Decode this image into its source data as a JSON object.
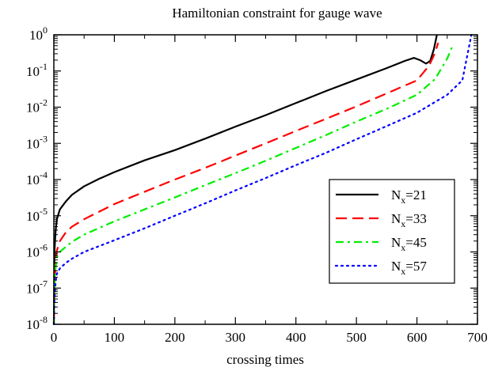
{
  "chart_data": {
    "type": "line",
    "title": "Hamiltonian constraint for gauge wave",
    "xlabel": "crossing times",
    "ylabel": "",
    "xlim": [
      0,
      700
    ],
    "ylim": [
      1e-08,
      1
    ],
    "yscale": "log",
    "grid": false,
    "legend_position": "center-right",
    "x_ticks": [
      {
        "value": 0,
        "label": "0"
      },
      {
        "value": 100,
        "label": "100"
      },
      {
        "value": 200,
        "label": "200"
      },
      {
        "value": 300,
        "label": "300"
      },
      {
        "value": 400,
        "label": "400"
      },
      {
        "value": 500,
        "label": "500"
      },
      {
        "value": 600,
        "label": "600"
      },
      {
        "value": 700,
        "label": "700"
      }
    ],
    "y_ticks": [
      {
        "value": 1e-08,
        "base": "10",
        "exp": "-8"
      },
      {
        "value": 1e-07,
        "base": "10",
        "exp": "-7"
      },
      {
        "value": 1e-06,
        "base": "10",
        "exp": "-6"
      },
      {
        "value": 1e-05,
        "base": "10",
        "exp": "-5"
      },
      {
        "value": 0.0001,
        "base": "10",
        "exp": "-4"
      },
      {
        "value": 0.001,
        "base": "10",
        "exp": "-3"
      },
      {
        "value": 0.01,
        "base": "10",
        "exp": "-2"
      },
      {
        "value": 0.1,
        "base": "10",
        "exp": "-1"
      },
      {
        "value": 1,
        "base": "10",
        "exp": "0"
      }
    ],
    "series": [
      {
        "legend": {
          "main": "N",
          "sub": "x",
          "rest": "=21"
        },
        "color": "#000000",
        "dash": "solid",
        "points": [
          [
            0,
            1e-08
          ],
          [
            1,
            1e-06
          ],
          [
            3,
            4e-06
          ],
          [
            5,
            8e-06
          ],
          [
            10,
            1.5e-05
          ],
          [
            20,
            2.5e-05
          ],
          [
            30,
            3.8e-05
          ],
          [
            50,
            6.5e-05
          ],
          [
            75,
            0.000105
          ],
          [
            100,
            0.00016
          ],
          [
            150,
            0.00034
          ],
          [
            200,
            0.00065
          ],
          [
            250,
            0.00135
          ],
          [
            300,
            0.0029
          ],
          [
            350,
            0.006
          ],
          [
            400,
            0.013
          ],
          [
            450,
            0.028
          ],
          [
            500,
            0.058
          ],
          [
            550,
            0.12
          ],
          [
            580,
            0.19
          ],
          [
            595,
            0.23
          ],
          [
            605,
            0.2
          ],
          [
            615,
            0.16
          ],
          [
            622,
            0.19
          ],
          [
            628,
            0.4
          ],
          [
            633,
            1.0
          ]
        ]
      },
      {
        "legend": {
          "main": "N",
          "sub": "x",
          "rest": "=33"
        },
        "color": "#ff0000",
        "dash": "dashed",
        "points": [
          [
            0,
            1e-08
          ],
          [
            1,
            1e-07
          ],
          [
            3,
            6e-07
          ],
          [
            5,
            1.1e-06
          ],
          [
            10,
            2e-06
          ],
          [
            20,
            3.5e-06
          ],
          [
            30,
            5e-06
          ],
          [
            50,
            8e-06
          ],
          [
            100,
            2.1e-05
          ],
          [
            150,
            4.6e-05
          ],
          [
            200,
            0.0001
          ],
          [
            250,
            0.00021
          ],
          [
            300,
            0.00046
          ],
          [
            350,
            0.001
          ],
          [
            400,
            0.0022
          ],
          [
            450,
            0.0048
          ],
          [
            500,
            0.0105
          ],
          [
            550,
            0.024
          ],
          [
            600,
            0.055
          ],
          [
            620,
            0.14
          ],
          [
            630,
            0.32
          ],
          [
            635,
            0.6
          ]
        ]
      },
      {
        "legend": {
          "main": "N",
          "sub": "x",
          "rest": "=45"
        },
        "color": "#00ee00",
        "dash": "dashdot",
        "points": [
          [
            0,
            1e-08
          ],
          [
            1,
            1e-07
          ],
          [
            3,
            4e-07
          ],
          [
            5,
            7e-07
          ],
          [
            10,
            1e-06
          ],
          [
            20,
            1.4e-06
          ],
          [
            30,
            1.9e-06
          ],
          [
            50,
            3e-06
          ],
          [
            100,
            7e-06
          ],
          [
            150,
            1.5e-05
          ],
          [
            200,
            3.2e-05
          ],
          [
            250,
            7e-05
          ],
          [
            300,
            0.00015
          ],
          [
            350,
            0.00033
          ],
          [
            400,
            0.00075
          ],
          [
            450,
            0.0017
          ],
          [
            500,
            0.004
          ],
          [
            550,
            0.009
          ],
          [
            600,
            0.022
          ],
          [
            630,
            0.06
          ],
          [
            650,
            0.22
          ],
          [
            660,
            0.55
          ]
        ]
      },
      {
        "legend": {
          "main": "N",
          "sub": "x",
          "rest": "=57"
        },
        "color": "#0000ff",
        "dash": "dotted",
        "points": [
          [
            0,
            1e-08
          ],
          [
            1,
            5e-08
          ],
          [
            3,
            1.5e-07
          ],
          [
            5,
            2.5e-07
          ],
          [
            10,
            3.5e-07
          ],
          [
            20,
            5e-07
          ],
          [
            30,
            6.5e-07
          ],
          [
            50,
            1e-06
          ],
          [
            100,
            2.1e-06
          ],
          [
            150,
            4.5e-06
          ],
          [
            200,
            1e-05
          ],
          [
            250,
            2.2e-05
          ],
          [
            300,
            5e-05
          ],
          [
            350,
            0.00011
          ],
          [
            400,
            0.00025
          ],
          [
            450,
            0.00055
          ],
          [
            500,
            0.0013
          ],
          [
            550,
            0.003
          ],
          [
            600,
            0.007
          ],
          [
            650,
            0.022
          ],
          [
            675,
            0.055
          ],
          [
            690,
            1.0
          ]
        ]
      }
    ]
  }
}
